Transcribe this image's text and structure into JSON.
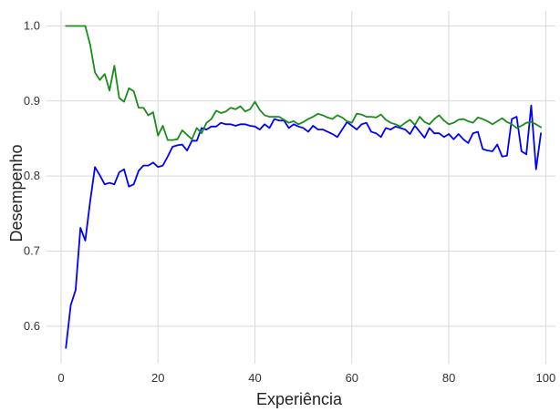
{
  "chart_data": {
    "type": "line",
    "title": "",
    "xlabel": "Experiência",
    "ylabel": "Desempenho",
    "xlim": [
      -3,
      102
    ],
    "ylim": [
      0.55,
      1.02
    ],
    "grid": true,
    "xticks": [
      0,
      20,
      40,
      60,
      80,
      100
    ],
    "yticks": [
      0.6,
      0.7,
      0.8,
      0.9,
      1.0
    ],
    "xtick_labels": [
      "0",
      "20",
      "40",
      "60",
      "80",
      "100"
    ],
    "ytick_labels": [
      "0.6",
      "0.7",
      "0.8",
      "0.9",
      "1.0"
    ],
    "series": [
      {
        "color": "#0000ff",
        "points": [
          [
            1,
            0.571
          ],
          [
            2,
            0.628
          ],
          [
            3,
            0.648
          ],
          [
            4,
            0.731
          ],
          [
            5,
            0.714
          ],
          [
            6,
            0.766
          ],
          [
            7,
            0.812
          ],
          [
            8,
            0.801
          ],
          [
            9,
            0.789
          ],
          [
            10,
            0.791
          ],
          [
            11,
            0.789
          ],
          [
            12,
            0.805
          ],
          [
            13,
            0.809
          ],
          [
            14,
            0.786
          ],
          [
            15,
            0.789
          ],
          [
            16,
            0.807
          ],
          [
            17,
            0.814
          ],
          [
            18,
            0.814
          ],
          [
            19,
            0.818
          ],
          [
            20,
            0.812
          ],
          [
            21,
            0.814
          ],
          [
            22,
            0.826
          ],
          [
            23,
            0.839
          ],
          [
            24,
            0.841
          ],
          [
            25,
            0.842
          ],
          [
            26,
            0.834
          ],
          [
            27,
            0.847
          ],
          [
            28,
            0.847
          ],
          [
            29,
            0.864
          ],
          [
            30,
            0.862
          ],
          [
            31,
            0.866
          ],
          [
            32,
            0.866
          ],
          [
            33,
            0.871
          ],
          [
            34,
            0.869
          ],
          [
            35,
            0.869
          ],
          [
            36,
            0.867
          ],
          [
            37,
            0.869
          ],
          [
            38,
            0.869
          ],
          [
            39,
            0.867
          ],
          [
            40,
            0.866
          ],
          [
            41,
            0.862
          ],
          [
            42,
            0.869
          ],
          [
            43,
            0.864
          ],
          [
            44,
            0.876
          ],
          [
            45,
            0.874
          ],
          [
            46,
            0.874
          ],
          [
            47,
            0.864
          ],
          [
            48,
            0.869
          ],
          [
            49,
            0.866
          ],
          [
            50,
            0.864
          ],
          [
            51,
            0.859
          ],
          [
            52,
            0.867
          ],
          [
            53,
            0.862
          ],
          [
            54,
            0.862
          ],
          [
            55,
            0.859
          ],
          [
            56,
            0.856
          ],
          [
            57,
            0.852
          ],
          [
            58,
            0.862
          ],
          [
            59,
            0.872
          ],
          [
            60,
            0.867
          ],
          [
            61,
            0.862
          ],
          [
            62,
            0.869
          ],
          [
            63,
            0.871
          ],
          [
            64,
            0.859
          ],
          [
            65,
            0.857
          ],
          [
            66,
            0.852
          ],
          [
            67,
            0.864
          ],
          [
            68,
            0.862
          ],
          [
            69,
            0.866
          ],
          [
            70,
            0.864
          ],
          [
            71,
            0.862
          ],
          [
            72,
            0.856
          ],
          [
            73,
            0.867
          ],
          [
            74,
            0.859
          ],
          [
            75,
            0.851
          ],
          [
            76,
            0.864
          ],
          [
            77,
            0.857
          ],
          [
            78,
            0.857
          ],
          [
            79,
            0.852
          ],
          [
            80,
            0.856
          ],
          [
            81,
            0.849
          ],
          [
            82,
            0.856
          ],
          [
            83,
            0.849
          ],
          [
            84,
            0.844
          ],
          [
            85,
            0.857
          ],
          [
            86,
            0.859
          ],
          [
            87,
            0.836
          ],
          [
            88,
            0.834
          ],
          [
            89,
            0.833
          ],
          [
            90,
            0.842
          ],
          [
            91,
            0.826
          ],
          [
            92,
            0.827
          ],
          [
            93,
            0.876
          ],
          [
            94,
            0.879
          ],
          [
            95,
            0.833
          ],
          [
            96,
            0.829
          ],
          [
            97,
            0.894
          ],
          [
            98,
            0.809
          ],
          [
            99,
            0.857
          ]
        ]
      },
      {
        "color": "#1a8c1a",
        "points": [
          [
            1,
            1.0
          ],
          [
            2,
            1.0
          ],
          [
            3,
            1.0
          ],
          [
            4,
            1.0
          ],
          [
            5,
            1.0
          ],
          [
            6,
            0.975
          ],
          [
            7,
            0.938
          ],
          [
            8,
            0.928
          ],
          [
            9,
            0.936
          ],
          [
            10,
            0.914
          ],
          [
            11,
            0.947
          ],
          [
            12,
            0.904
          ],
          [
            13,
            0.899
          ],
          [
            14,
            0.917
          ],
          [
            15,
            0.913
          ],
          [
            16,
            0.891
          ],
          [
            17,
            0.891
          ],
          [
            18,
            0.881
          ],
          [
            19,
            0.885
          ],
          [
            20,
            0.854
          ],
          [
            21,
            0.867
          ],
          [
            22,
            0.848
          ],
          [
            23,
            0.848
          ],
          [
            24,
            0.849
          ],
          [
            25,
            0.861
          ],
          [
            26,
            0.855
          ],
          [
            27,
            0.849
          ],
          [
            28,
            0.864
          ],
          [
            29,
            0.857
          ],
          [
            30,
            0.871
          ],
          [
            31,
            0.876
          ],
          [
            32,
            0.887
          ],
          [
            33,
            0.884
          ],
          [
            34,
            0.886
          ],
          [
            35,
            0.891
          ],
          [
            36,
            0.889
          ],
          [
            37,
            0.893
          ],
          [
            38,
            0.886
          ],
          [
            39,
            0.889
          ],
          [
            40,
            0.899
          ],
          [
            41,
            0.888
          ],
          [
            42,
            0.881
          ],
          [
            43,
            0.879
          ],
          [
            44,
            0.879
          ],
          [
            45,
            0.879
          ],
          [
            46,
            0.875
          ],
          [
            47,
            0.871
          ],
          [
            48,
            0.873
          ],
          [
            49,
            0.869
          ],
          [
            50,
            0.872
          ],
          [
            51,
            0.876
          ],
          [
            52,
            0.879
          ],
          [
            53,
            0.883
          ],
          [
            54,
            0.881
          ],
          [
            55,
            0.878
          ],
          [
            56,
            0.876
          ],
          [
            57,
            0.881
          ],
          [
            58,
            0.878
          ],
          [
            59,
            0.873
          ],
          [
            60,
            0.871
          ],
          [
            61,
            0.883
          ],
          [
            62,
            0.882
          ],
          [
            63,
            0.879
          ],
          [
            64,
            0.879
          ],
          [
            65,
            0.878
          ],
          [
            66,
            0.882
          ],
          [
            67,
            0.875
          ],
          [
            68,
            0.871
          ],
          [
            69,
            0.869
          ],
          [
            70,
            0.866
          ],
          [
            71,
            0.871
          ],
          [
            72,
            0.875
          ],
          [
            73,
            0.868
          ],
          [
            74,
            0.879
          ],
          [
            75,
            0.872
          ],
          [
            76,
            0.869
          ],
          [
            77,
            0.876
          ],
          [
            78,
            0.881
          ],
          [
            79,
            0.874
          ],
          [
            80,
            0.869
          ],
          [
            81,
            0.871
          ],
          [
            82,
            0.875
          ],
          [
            83,
            0.876
          ],
          [
            84,
            0.873
          ],
          [
            85,
            0.871
          ],
          [
            86,
            0.878
          ],
          [
            87,
            0.876
          ],
          [
            88,
            0.873
          ],
          [
            89,
            0.869
          ],
          [
            90,
            0.873
          ],
          [
            91,
            0.877
          ],
          [
            92,
            0.872
          ],
          [
            93,
            0.869
          ],
          [
            94,
            0.864
          ],
          [
            95,
            0.867
          ],
          [
            96,
            0.871
          ],
          [
            97,
            0.872
          ],
          [
            98,
            0.869
          ],
          [
            99,
            0.865
          ]
        ]
      }
    ]
  }
}
